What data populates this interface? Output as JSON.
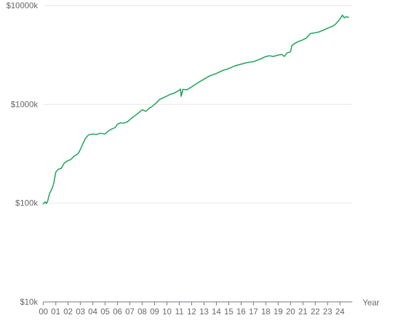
{
  "chart_data": {
    "type": "line",
    "title": "",
    "xlabel": "Year",
    "ylabel": "",
    "y_scale": "log",
    "ylim": [
      10000,
      10000000
    ],
    "xlim": [
      2000.0,
      2025.0
    ],
    "grid": "horizontal",
    "legend": "none",
    "y_ticks": [
      {
        "value": 10000,
        "label": "$10k"
      },
      {
        "value": 100000,
        "label": "$100k"
      },
      {
        "value": 1000000,
        "label": "$1000k"
      },
      {
        "value": 10000000,
        "label": "$10000k"
      }
    ],
    "x_ticks": [
      {
        "value": 2000,
        "label": "00"
      },
      {
        "value": 2001,
        "label": "01"
      },
      {
        "value": 2002,
        "label": "02"
      },
      {
        "value": 2003,
        "label": "03"
      },
      {
        "value": 2004,
        "label": "04"
      },
      {
        "value": 2005,
        "label": "05"
      },
      {
        "value": 2006,
        "label": "06"
      },
      {
        "value": 2007,
        "label": "07"
      },
      {
        "value": 2008,
        "label": "08"
      },
      {
        "value": 2009,
        "label": "09"
      },
      {
        "value": 2010,
        "label": "10"
      },
      {
        "value": 2011,
        "label": "11"
      },
      {
        "value": 2012,
        "label": "12"
      },
      {
        "value": 2013,
        "label": "13"
      },
      {
        "value": 2014,
        "label": "14"
      },
      {
        "value": 2015,
        "label": "15"
      },
      {
        "value": 2016,
        "label": "16"
      },
      {
        "value": 2017,
        "label": "17"
      },
      {
        "value": 2018,
        "label": "18"
      },
      {
        "value": 2019,
        "label": "19"
      },
      {
        "value": 2020,
        "label": "20"
      },
      {
        "value": 2021,
        "label": "21"
      },
      {
        "value": 2022,
        "label": "22"
      },
      {
        "value": 2023,
        "label": "23"
      },
      {
        "value": 2024,
        "label": "24"
      }
    ],
    "series": [
      {
        "color": "#22a55b",
        "x": [
          2000.0,
          2000.15,
          2000.25,
          2000.35,
          2000.5,
          2000.7,
          2000.85,
          2001.0,
          2001.2,
          2001.45,
          2001.7,
          2002.0,
          2002.2,
          2002.5,
          2002.8,
          2003.0,
          2003.2,
          2003.4,
          2003.65,
          2004.0,
          2004.3,
          2004.6,
          2005.0,
          2005.2,
          2005.5,
          2005.8,
          2006.0,
          2006.25,
          2006.5,
          2006.8,
          2007.0,
          2007.3,
          2007.6,
          2008.0,
          2008.3,
          2008.6,
          2008.8,
          2009.0,
          2009.2,
          2009.4,
          2009.8,
          2010.2,
          2010.6,
          2011.0,
          2011.1,
          2011.15,
          2011.3,
          2011.6,
          2012.0,
          2012.5,
          2013.0,
          2013.5,
          2014.0,
          2014.5,
          2015.0,
          2015.5,
          2016.0,
          2016.5,
          2017.0,
          2017.5,
          2018.0,
          2018.3,
          2018.6,
          2019.0,
          2019.3,
          2019.5,
          2019.7,
          2020.0,
          2020.1,
          2020.3,
          2020.6,
          2021.0,
          2021.3,
          2021.6,
          2022.0,
          2022.3,
          2022.6,
          2023.0,
          2023.3,
          2023.6,
          2024.0,
          2024.2,
          2024.35,
          2024.5,
          2024.7
        ],
        "y": [
          98000,
          103000,
          99000,
          105000,
          125000,
          140000,
          160000,
          205000,
          220000,
          225000,
          255000,
          270000,
          275000,
          300000,
          315000,
          350000,
          400000,
          450000,
          490000,
          500000,
          495000,
          510000,
          500000,
          530000,
          560000,
          580000,
          630000,
          650000,
          645000,
          665000,
          700000,
          750000,
          800000,
          880000,
          850000,
          920000,
          950000,
          1000000,
          1050000,
          1120000,
          1180000,
          1250000,
          1300000,
          1390000,
          1430000,
          1200000,
          1420000,
          1400000,
          1500000,
          1650000,
          1800000,
          1950000,
          2050000,
          2200000,
          2300000,
          2450000,
          2550000,
          2650000,
          2700000,
          2850000,
          3050000,
          3100000,
          3050000,
          3150000,
          3200000,
          3050000,
          3300000,
          3400000,
          3900000,
          4100000,
          4300000,
          4500000,
          4700000,
          5200000,
          5300000,
          5400000,
          5600000,
          5900000,
          6100000,
          6400000,
          7300000,
          8000000,
          7500000,
          7700000,
          7600000
        ]
      }
    ]
  }
}
